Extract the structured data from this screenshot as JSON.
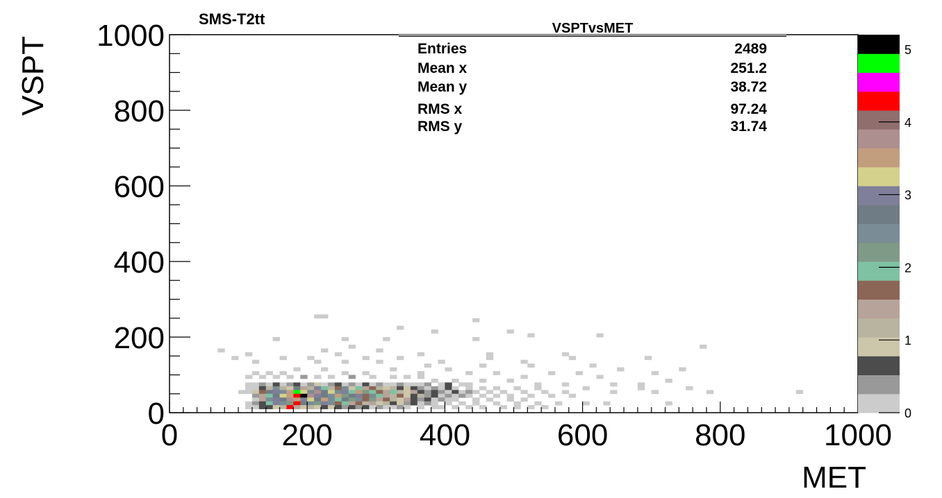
{
  "chart_data": {
    "type": "heatmap",
    "canvas_label": "SMS-T2tt",
    "title": "VSPTvsMET",
    "xlabel": "MET",
    "ylabel": "VSPT",
    "xlim": [
      0,
      1000
    ],
    "ylim": [
      0,
      1000
    ],
    "bin_width": 10,
    "x_ticks": [
      0,
      200,
      400,
      600,
      800,
      1000
    ],
    "y_ticks": [
      0,
      200,
      400,
      600,
      800,
      1000
    ],
    "colorbar": {
      "range": [
        0,
        5.2
      ],
      "ticks": [
        0,
        1,
        2,
        3,
        4,
        5
      ],
      "palette": [
        "#cccccc",
        "#999999",
        "#4c4c4c",
        "#ccc6aa",
        "#b8b4a0",
        "#b8a39a",
        "#8b6656",
        "#7fc1a3",
        "#7f9a86",
        "#7a8c95",
        "#707c85",
        "#7f7f9a",
        "#d4d18c",
        "#c29e7e",
        "#ae8f8f",
        "#916e6e",
        "#ff0000",
        "#ff00ff",
        "#00ff00",
        "#000000"
      ]
    },
    "stats": {
      "entries": {
        "label": "Entries",
        "value": "2489"
      },
      "mean_x": {
        "label": "Mean x",
        "value": "251.2"
      },
      "mean_y": {
        "label": "Mean y",
        "value": "38.72"
      },
      "rms_x": {
        "label": "RMS x",
        "value": "97.24"
      },
      "rms_y": {
        "label": "RMS y",
        "value": "31.74"
      }
    },
    "bins": [
      [
        210,
        250,
        0
      ],
      [
        220,
        250,
        0
      ],
      [
        440,
        240,
        0
      ],
      [
        330,
        220,
        0
      ],
      [
        380,
        210,
        0
      ],
      [
        490,
        210,
        0
      ],
      [
        620,
        200,
        0
      ],
      [
        150,
        190,
        0
      ],
      [
        250,
        190,
        0
      ],
      [
        310,
        190,
        0
      ],
      [
        440,
        190,
        0
      ],
      [
        520,
        200,
        0
      ],
      [
        770,
        170,
        0
      ],
      [
        70,
        160,
        0
      ],
      [
        110,
        150,
        0
      ],
      [
        220,
        160,
        0
      ],
      [
        260,
        170,
        0
      ],
      [
        300,
        160,
        0
      ],
      [
        360,
        150,
        0
      ],
      [
        460,
        150,
        0
      ],
      [
        570,
        150,
        0
      ],
      [
        90,
        140,
        0
      ],
      [
        160,
        140,
        0
      ],
      [
        200,
        140,
        0
      ],
      [
        240,
        150,
        0
      ],
      [
        280,
        140,
        0
      ],
      [
        330,
        140,
        0
      ],
      [
        390,
        130,
        0
      ],
      [
        460,
        140,
        0
      ],
      [
        510,
        130,
        0
      ],
      [
        580,
        140,
        0
      ],
      [
        690,
        140,
        0
      ],
      [
        120,
        130,
        0
      ],
      [
        210,
        130,
        0
      ],
      [
        250,
        130,
        0
      ],
      [
        300,
        130,
        0
      ],
      [
        370,
        120,
        0
      ],
      [
        450,
        120,
        0
      ],
      [
        520,
        120,
        0
      ],
      [
        610,
        120,
        0
      ],
      [
        650,
        110,
        0
      ],
      [
        740,
        110,
        0
      ],
      [
        120,
        100,
        0
      ],
      [
        140,
        100,
        0
      ],
      [
        160,
        100,
        0
      ],
      [
        180,
        110,
        0
      ],
      [
        220,
        110,
        0
      ],
      [
        250,
        100,
        0
      ],
      [
        280,
        100,
        0
      ],
      [
        320,
        110,
        0
      ],
      [
        360,
        100,
        0
      ],
      [
        400,
        110,
        0
      ],
      [
        430,
        100,
        0
      ],
      [
        470,
        100,
        0
      ],
      [
        510,
        90,
        0
      ],
      [
        550,
        100,
        0
      ],
      [
        590,
        100,
        0
      ],
      [
        620,
        90,
        0
      ],
      [
        700,
        100,
        0
      ],
      [
        110,
        90,
        0
      ],
      [
        130,
        90,
        0
      ],
      [
        150,
        90,
        0
      ],
      [
        170,
        90,
        0
      ],
      [
        190,
        90,
        1
      ],
      [
        210,
        90,
        0
      ],
      [
        230,
        90,
        0
      ],
      [
        260,
        90,
        1
      ],
      [
        290,
        90,
        0
      ],
      [
        320,
        90,
        0
      ],
      [
        340,
        90,
        0
      ],
      [
        360,
        90,
        0
      ],
      [
        380,
        80,
        0
      ],
      [
        410,
        80,
        0
      ],
      [
        450,
        80,
        0
      ],
      [
        490,
        80,
        0
      ],
      [
        530,
        70,
        0
      ],
      [
        570,
        70,
        0
      ],
      [
        640,
        70,
        0
      ],
      [
        680,
        70,
        0
      ],
      [
        720,
        80,
        0
      ],
      [
        750,
        60,
        0
      ],
      [
        780,
        50,
        0
      ],
      [
        910,
        50,
        0
      ],
      [
        1000,
        40,
        0
      ],
      [
        110,
        70,
        0
      ],
      [
        120,
        70,
        0
      ],
      [
        130,
        70,
        1
      ],
      [
        140,
        70,
        0
      ],
      [
        150,
        70,
        2
      ],
      [
        160,
        70,
        0
      ],
      [
        170,
        70,
        1
      ],
      [
        180,
        70,
        2
      ],
      [
        190,
        70,
        0
      ],
      [
        200,
        70,
        1
      ],
      [
        210,
        70,
        3
      ],
      [
        220,
        70,
        0
      ],
      [
        230,
        70,
        1
      ],
      [
        240,
        70,
        2
      ],
      [
        250,
        70,
        0
      ],
      [
        260,
        70,
        1
      ],
      [
        270,
        70,
        0
      ],
      [
        280,
        70,
        2
      ],
      [
        290,
        70,
        0
      ],
      [
        300,
        70,
        1
      ],
      [
        310,
        70,
        0
      ],
      [
        320,
        70,
        0
      ],
      [
        330,
        70,
        1
      ],
      [
        340,
        70,
        0
      ],
      [
        350,
        70,
        0
      ],
      [
        360,
        70,
        0
      ],
      [
        370,
        70,
        1
      ],
      [
        390,
        70,
        0
      ],
      [
        400,
        70,
        2
      ],
      [
        420,
        70,
        0
      ],
      [
        430,
        70,
        0
      ],
      [
        110,
        60,
        0
      ],
      [
        120,
        60,
        0
      ],
      [
        130,
        60,
        2
      ],
      [
        140,
        60,
        4
      ],
      [
        150,
        60,
        9
      ],
      [
        160,
        60,
        4
      ],
      [
        170,
        60,
        3
      ],
      [
        180,
        60,
        10
      ],
      [
        190,
        60,
        5
      ],
      [
        200,
        60,
        4
      ],
      [
        210,
        60,
        11
      ],
      [
        220,
        60,
        7
      ],
      [
        230,
        60,
        4
      ],
      [
        240,
        60,
        6
      ],
      [
        250,
        60,
        9
      ],
      [
        260,
        60,
        3
      ],
      [
        270,
        60,
        7
      ],
      [
        280,
        60,
        5
      ],
      [
        290,
        60,
        6
      ],
      [
        300,
        60,
        4
      ],
      [
        310,
        60,
        3
      ],
      [
        320,
        60,
        4
      ],
      [
        330,
        60,
        2
      ],
      [
        340,
        60,
        3
      ],
      [
        350,
        60,
        2
      ],
      [
        360,
        60,
        1
      ],
      [
        370,
        60,
        0
      ],
      [
        380,
        60,
        1
      ],
      [
        390,
        60,
        0
      ],
      [
        400,
        60,
        2
      ],
      [
        410,
        60,
        0
      ],
      [
        430,
        60,
        0
      ],
      [
        450,
        60,
        0
      ],
      [
        470,
        60,
        0
      ],
      [
        500,
        60,
        0
      ],
      [
        530,
        60,
        0
      ],
      [
        600,
        60,
        0
      ],
      [
        680,
        60,
        0
      ],
      [
        100,
        50,
        0
      ],
      [
        110,
        50,
        0
      ],
      [
        120,
        50,
        3
      ],
      [
        130,
        50,
        6
      ],
      [
        140,
        50,
        10
      ],
      [
        150,
        50,
        11
      ],
      [
        160,
        50,
        9
      ],
      [
        170,
        50,
        13
      ],
      [
        180,
        50,
        18
      ],
      [
        190,
        50,
        12
      ],
      [
        200,
        50,
        9
      ],
      [
        210,
        50,
        14
      ],
      [
        220,
        50,
        10
      ],
      [
        230,
        50,
        12
      ],
      [
        240,
        50,
        9
      ],
      [
        250,
        50,
        11
      ],
      [
        260,
        50,
        7
      ],
      [
        270,
        50,
        13
      ],
      [
        280,
        50,
        8
      ],
      [
        290,
        50,
        7
      ],
      [
        300,
        50,
        6
      ],
      [
        310,
        50,
        5
      ],
      [
        320,
        50,
        7
      ],
      [
        330,
        50,
        4
      ],
      [
        340,
        50,
        3
      ],
      [
        350,
        50,
        5
      ],
      [
        360,
        50,
        2
      ],
      [
        370,
        50,
        1
      ],
      [
        380,
        50,
        2
      ],
      [
        390,
        50,
        1
      ],
      [
        400,
        50,
        0
      ],
      [
        410,
        50,
        2
      ],
      [
        420,
        50,
        0
      ],
      [
        430,
        50,
        1
      ],
      [
        440,
        50,
        0
      ],
      [
        460,
        50,
        0
      ],
      [
        480,
        50,
        0
      ],
      [
        510,
        50,
        0
      ],
      [
        540,
        50,
        0
      ],
      [
        570,
        50,
        0
      ],
      [
        640,
        50,
        0
      ],
      [
        700,
        50,
        0
      ],
      [
        120,
        40,
        1
      ],
      [
        130,
        40,
        5
      ],
      [
        140,
        40,
        7
      ],
      [
        150,
        40,
        10
      ],
      [
        160,
        40,
        12
      ],
      [
        170,
        40,
        13
      ],
      [
        180,
        40,
        16
      ],
      [
        190,
        40,
        19
      ],
      [
        200,
        40,
        14
      ],
      [
        210,
        40,
        11
      ],
      [
        220,
        40,
        10
      ],
      [
        230,
        40,
        9
      ],
      [
        240,
        40,
        13
      ],
      [
        250,
        40,
        8
      ],
      [
        260,
        40,
        10
      ],
      [
        270,
        40,
        11
      ],
      [
        280,
        40,
        6
      ],
      [
        290,
        40,
        9
      ],
      [
        300,
        40,
        7
      ],
      [
        310,
        40,
        5
      ],
      [
        320,
        40,
        4
      ],
      [
        330,
        40,
        6
      ],
      [
        340,
        40,
        3
      ],
      [
        350,
        40,
        2
      ],
      [
        360,
        40,
        4
      ],
      [
        370,
        40,
        1
      ],
      [
        380,
        40,
        2
      ],
      [
        390,
        40,
        0
      ],
      [
        400,
        40,
        1
      ],
      [
        410,
        40,
        0
      ],
      [
        420,
        40,
        1
      ],
      [
        430,
        40,
        0
      ],
      [
        450,
        40,
        0
      ],
      [
        470,
        40,
        0
      ],
      [
        490,
        40,
        0
      ],
      [
        520,
        40,
        0
      ],
      [
        550,
        40,
        0
      ],
      [
        580,
        40,
        0
      ],
      [
        120,
        30,
        0
      ],
      [
        130,
        30,
        5
      ],
      [
        140,
        30,
        9
      ],
      [
        150,
        30,
        11
      ],
      [
        160,
        30,
        10
      ],
      [
        170,
        30,
        14
      ],
      [
        180,
        30,
        13
      ],
      [
        190,
        30,
        11
      ],
      [
        200,
        30,
        12
      ],
      [
        210,
        30,
        10
      ],
      [
        220,
        30,
        13
      ],
      [
        230,
        30,
        9
      ],
      [
        240,
        30,
        7
      ],
      [
        250,
        30,
        10
      ],
      [
        260,
        30,
        8
      ],
      [
        270,
        30,
        9
      ],
      [
        280,
        30,
        6
      ],
      [
        290,
        30,
        8
      ],
      [
        300,
        30,
        5
      ],
      [
        310,
        30,
        6
      ],
      [
        320,
        30,
        4
      ],
      [
        330,
        30,
        3
      ],
      [
        340,
        30,
        5
      ],
      [
        350,
        30,
        2
      ],
      [
        360,
        30,
        1
      ],
      [
        370,
        30,
        2
      ],
      [
        380,
        30,
        0
      ],
      [
        390,
        30,
        1
      ],
      [
        400,
        30,
        0
      ],
      [
        410,
        30,
        0
      ],
      [
        440,
        30,
        0
      ],
      [
        460,
        30,
        0
      ],
      [
        490,
        30,
        0
      ],
      [
        510,
        30,
        0
      ],
      [
        110,
        20,
        0
      ],
      [
        120,
        20,
        1
      ],
      [
        130,
        20,
        2
      ],
      [
        140,
        20,
        7
      ],
      [
        150,
        20,
        11
      ],
      [
        160,
        20,
        9
      ],
      [
        170,
        20,
        8
      ],
      [
        180,
        20,
        16
      ],
      [
        190,
        20,
        10
      ],
      [
        200,
        20,
        9
      ],
      [
        210,
        20,
        8
      ],
      [
        220,
        20,
        11
      ],
      [
        230,
        20,
        9
      ],
      [
        240,
        20,
        6
      ],
      [
        250,
        20,
        7
      ],
      [
        260,
        20,
        5
      ],
      [
        270,
        20,
        6
      ],
      [
        280,
        20,
        4
      ],
      [
        290,
        20,
        5
      ],
      [
        300,
        20,
        3
      ],
      [
        310,
        20,
        4
      ],
      [
        320,
        20,
        2
      ],
      [
        330,
        20,
        3
      ],
      [
        340,
        20,
        1
      ],
      [
        350,
        20,
        2
      ],
      [
        360,
        20,
        0
      ],
      [
        370,
        20,
        1
      ],
      [
        380,
        20,
        0
      ],
      [
        400,
        20,
        0
      ],
      [
        420,
        20,
        0
      ],
      [
        440,
        20,
        0
      ],
      [
        470,
        20,
        0
      ],
      [
        500,
        20,
        0
      ],
      [
        530,
        20,
        0
      ],
      [
        560,
        20,
        0
      ],
      [
        600,
        20,
        0
      ],
      [
        630,
        20,
        0
      ],
      [
        720,
        20,
        0
      ],
      [
        110,
        10,
        0
      ],
      [
        120,
        10,
        0
      ],
      [
        130,
        10,
        2
      ],
      [
        140,
        10,
        2
      ],
      [
        150,
        10,
        3
      ],
      [
        160,
        10,
        4
      ],
      [
        170,
        10,
        16
      ],
      [
        180,
        10,
        5
      ],
      [
        190,
        10,
        3
      ],
      [
        200,
        10,
        4
      ],
      [
        210,
        10,
        3
      ],
      [
        220,
        10,
        2
      ],
      [
        230,
        10,
        3
      ],
      [
        240,
        10,
        2
      ],
      [
        250,
        10,
        1
      ],
      [
        260,
        10,
        2
      ],
      [
        270,
        10,
        1
      ],
      [
        280,
        10,
        2
      ],
      [
        290,
        10,
        0
      ],
      [
        300,
        10,
        1
      ],
      [
        310,
        10,
        0
      ],
      [
        320,
        10,
        0
      ],
      [
        330,
        10,
        1
      ],
      [
        340,
        10,
        0
      ],
      [
        360,
        10,
        0
      ],
      [
        380,
        10,
        0
      ],
      [
        390,
        10,
        0
      ],
      [
        410,
        10,
        0
      ],
      [
        430,
        10,
        0
      ],
      [
        450,
        10,
        0
      ],
      [
        480,
        10,
        0
      ],
      [
        500,
        10,
        0
      ],
      [
        520,
        10,
        0
      ],
      [
        540,
        10,
        0
      ]
    ]
  }
}
